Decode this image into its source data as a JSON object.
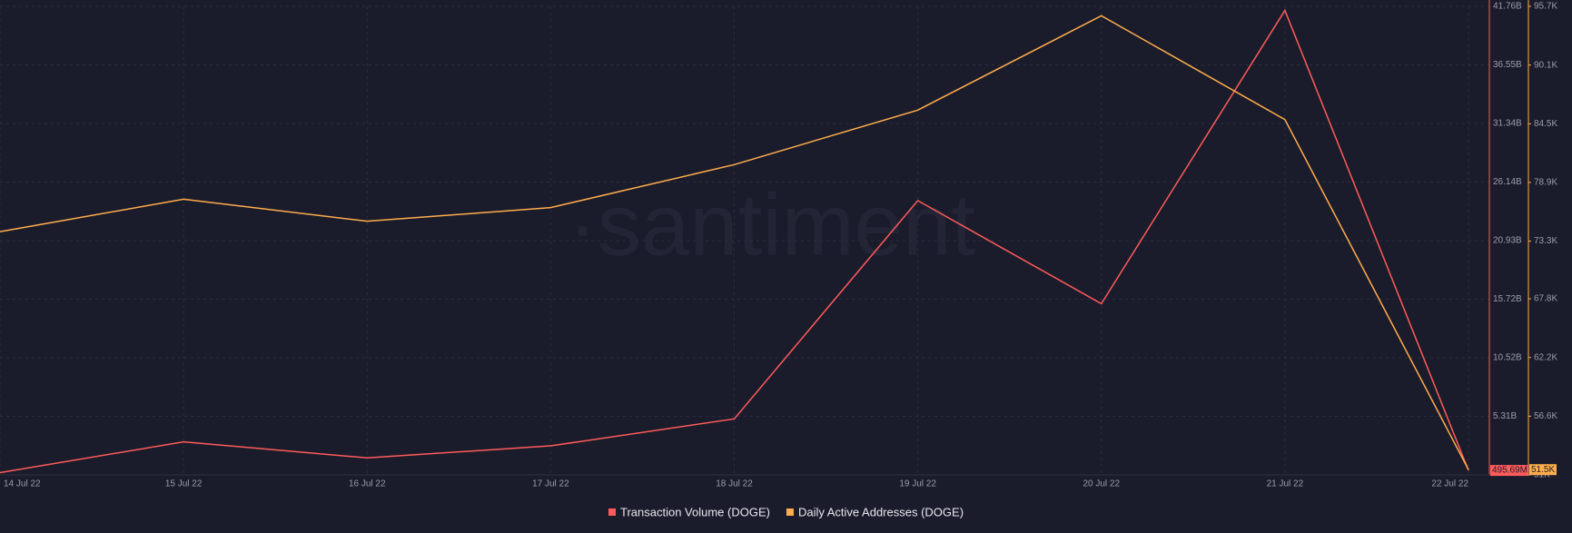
{
  "chart_data": {
    "type": "line",
    "watermark": "·santiment",
    "categories": [
      "14 Jul 22",
      "15 Jul 22",
      "16 Jul 22",
      "17 Jul 22",
      "18 Jul 22",
      "19 Jul 22",
      "20 Jul 22",
      "21 Jul 22",
      "22 Jul 22"
    ],
    "series": [
      {
        "name": "Transaction Volume (DOGE)",
        "color": "#ff5b5b",
        "axis": "y",
        "values": [
          0.3,
          3.04,
          1.61,
          2.68,
          5.08,
          24.49,
          15.32,
          41.4,
          0.49569
        ],
        "value_labels": [
          null,
          null,
          null,
          null,
          null,
          null,
          null,
          null,
          "495.69M"
        ]
      },
      {
        "name": "Daily Active Addresses (DOGE)",
        "color": "#ffad4d",
        "axis": "y2",
        "values": [
          74.2,
          77.3,
          75.2,
          76.5,
          80.6,
          85.8,
          94.8,
          84.9,
          51.5
        ],
        "value_labels": [
          null,
          null,
          null,
          null,
          null,
          null,
          null,
          null,
          "51.5K"
        ]
      }
    ],
    "ylim": [
      0.1,
      41.76
    ],
    "yticks": [
      {
        "value": 5.31,
        "label": "5.31B"
      },
      {
        "value": 10.52,
        "label": "10.52B"
      },
      {
        "value": 15.72,
        "label": "15.72B"
      },
      {
        "value": 20.93,
        "label": "20.93B"
      },
      {
        "value": 26.14,
        "label": "26.14B"
      },
      {
        "value": 31.34,
        "label": "31.34B"
      },
      {
        "value": 36.55,
        "label": "36.55B"
      },
      {
        "value": 41.76,
        "label": "41.76B"
      }
    ],
    "y2lim": [
      51,
      95.7
    ],
    "y2ticks": [
      {
        "value": 51,
        "label": "51K"
      },
      {
        "value": 56.6,
        "label": "56.6K"
      },
      {
        "value": 62.2,
        "label": "62.2K"
      },
      {
        "value": 67.8,
        "label": "67.8K"
      },
      {
        "value": 73.3,
        "label": "73.3K"
      },
      {
        "value": 78.9,
        "label": "78.9K"
      },
      {
        "value": 84.5,
        "label": "84.5K"
      },
      {
        "value": 90.1,
        "label": "90.1K"
      },
      {
        "value": 95.7,
        "label": "95.7K"
      }
    ],
    "grid": true
  }
}
